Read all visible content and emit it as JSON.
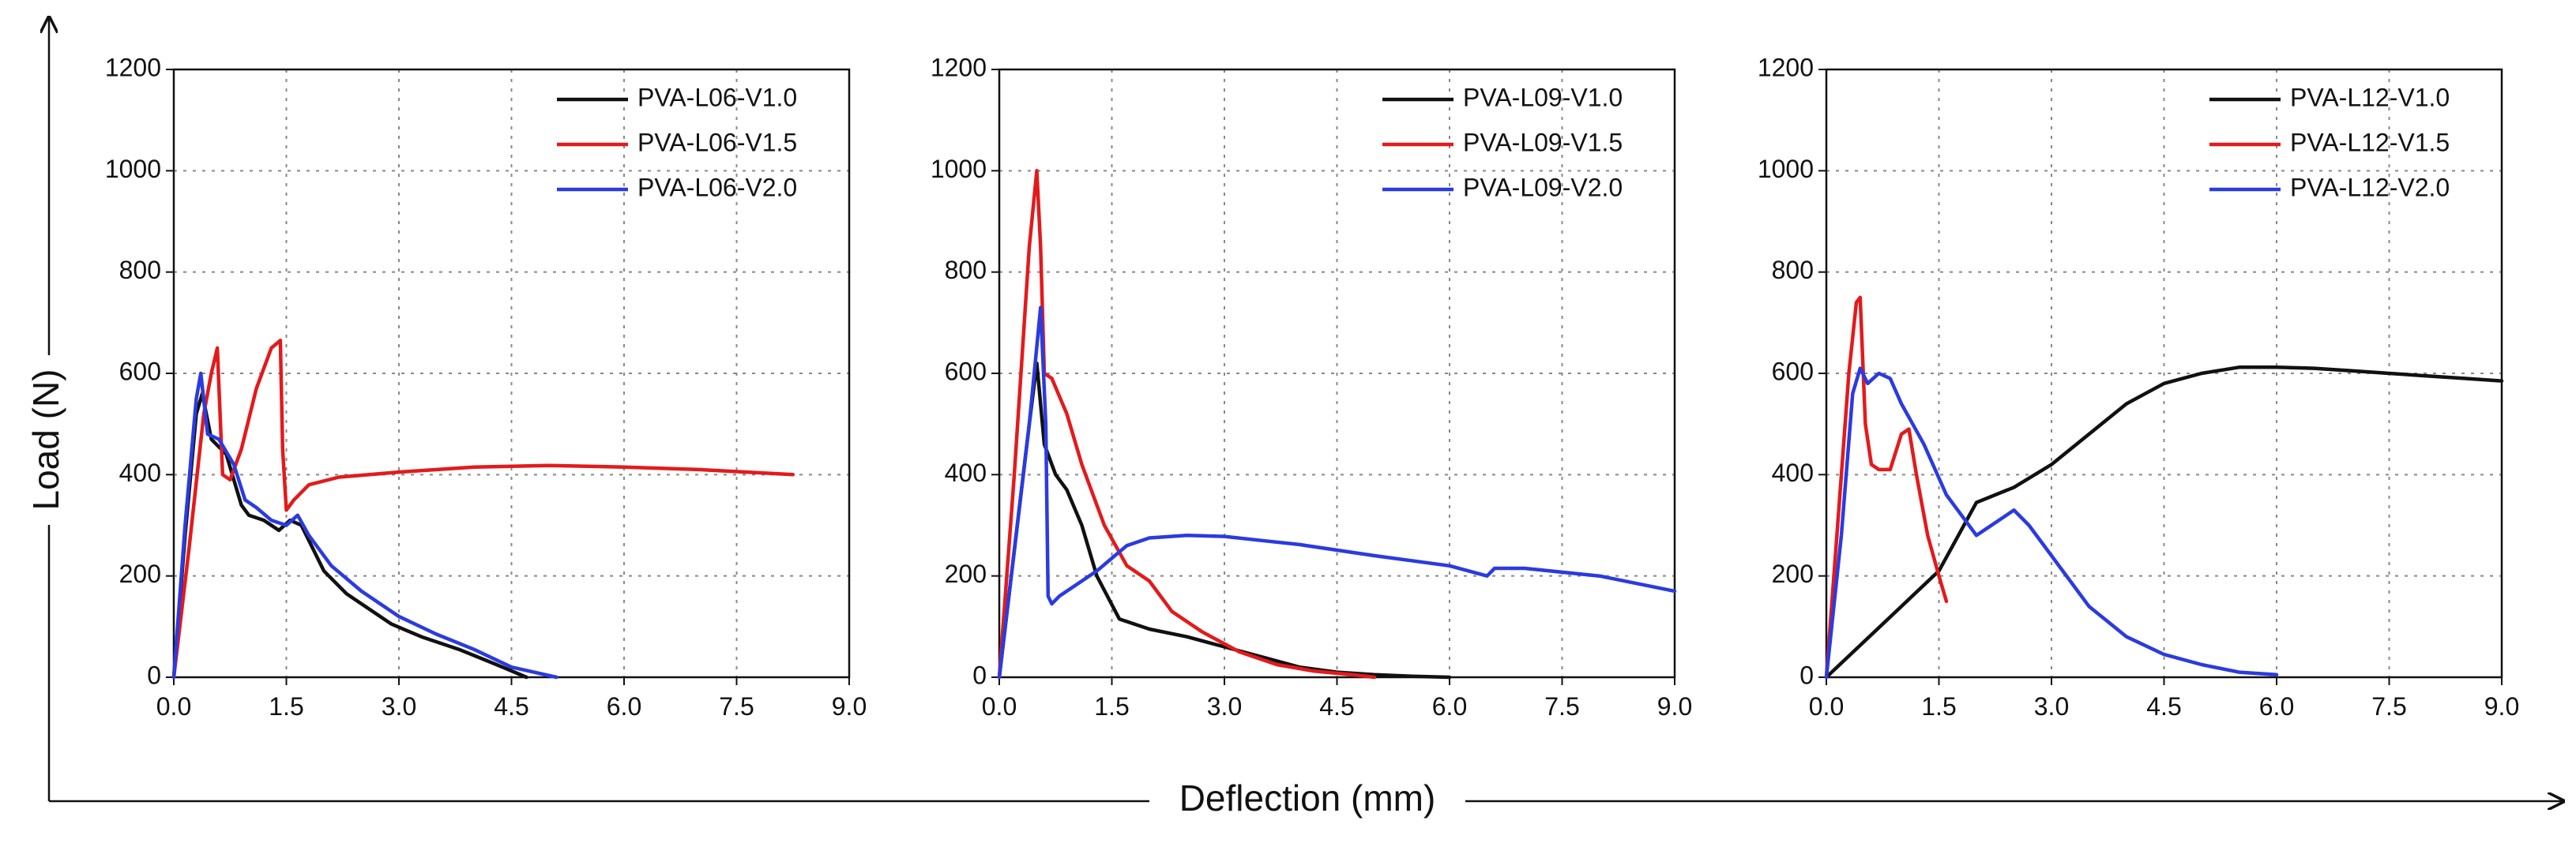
{
  "x_axis_title": "Deflection (mm)",
  "y_axis_title": "Load (N)",
  "colors": {
    "black": "#111111",
    "red": "#e31a1c",
    "blue": "#2b3be0",
    "grid": "#888888"
  },
  "chart_data": [
    {
      "type": "line",
      "xlim": [
        0,
        9
      ],
      "ylim": [
        0,
        1200
      ],
      "x_ticks": [
        "0.0",
        "1.5",
        "3.0",
        "4.5",
        "6.0",
        "7.5",
        "9.0"
      ],
      "y_ticks": [
        "0",
        "200",
        "400",
        "600",
        "800",
        "1000",
        "1200"
      ],
      "grid": true,
      "legend": "top-right",
      "series": [
        {
          "name": "PVA-L06-V1.0",
          "color": "#111111",
          "x": [
            0,
            0.15,
            0.3,
            0.38,
            0.5,
            0.7,
            0.8,
            0.9,
            1.0,
            1.2,
            1.4,
            1.55,
            1.7,
            2.0,
            2.3,
            2.6,
            2.9,
            3.3,
            3.8,
            4.3,
            4.7
          ],
          "y": [
            0,
            280,
            520,
            560,
            470,
            440,
            390,
            340,
            320,
            310,
            290,
            310,
            300,
            210,
            165,
            135,
            105,
            80,
            55,
            25,
            0
          ]
        },
        {
          "name": "PVA-L06-V1.5",
          "color": "#e31a1c",
          "x": [
            0,
            0.2,
            0.4,
            0.5,
            0.58,
            0.65,
            0.75,
            0.9,
            1.1,
            1.3,
            1.42,
            1.45,
            1.5,
            1.6,
            1.8,
            2.2,
            3.0,
            4.0,
            5.0,
            6.0,
            7.0,
            8.25
          ],
          "y": [
            0,
            250,
            520,
            600,
            650,
            400,
            390,
            450,
            570,
            650,
            665,
            450,
            330,
            350,
            380,
            395,
            405,
            415,
            418,
            415,
            410,
            400
          ]
        },
        {
          "name": "PVA-L06-V2.0",
          "color": "#2b3be0",
          "x": [
            0,
            0.15,
            0.3,
            0.36,
            0.45,
            0.6,
            0.8,
            0.95,
            1.1,
            1.3,
            1.5,
            1.65,
            1.8,
            2.1,
            2.5,
            3.0,
            3.5,
            4.0,
            4.5,
            4.8,
            5.1
          ],
          "y": [
            0,
            300,
            550,
            600,
            480,
            470,
            420,
            350,
            335,
            310,
            300,
            320,
            280,
            220,
            170,
            120,
            85,
            55,
            20,
            10,
            0
          ]
        }
      ]
    },
    {
      "type": "line",
      "xlim": [
        0,
        9
      ],
      "ylim": [
        0,
        1200
      ],
      "x_ticks": [
        "0.0",
        "1.5",
        "3.0",
        "4.5",
        "6.0",
        "7.5",
        "9.0"
      ],
      "y_ticks": [
        "0",
        "200",
        "400",
        "600",
        "800",
        "1000",
        "1200"
      ],
      "grid": true,
      "legend": "top-right",
      "series": [
        {
          "name": "PVA-L09-V1.0",
          "color": "#111111",
          "x": [
            0,
            0.2,
            0.4,
            0.5,
            0.6,
            0.75,
            0.9,
            1.1,
            1.3,
            1.6,
            2.0,
            2.5,
            3.0,
            3.5,
            4.0,
            4.5,
            5.0,
            5.5,
            6.0
          ],
          "y": [
            0,
            250,
            500,
            620,
            460,
            400,
            370,
            300,
            200,
            115,
            95,
            80,
            60,
            40,
            20,
            10,
            5,
            2,
            0
          ]
        },
        {
          "name": "PVA-L09-V1.5",
          "color": "#e31a1c",
          "x": [
            0,
            0.2,
            0.4,
            0.5,
            0.55,
            0.6,
            0.7,
            0.9,
            1.1,
            1.4,
            1.7,
            2.0,
            2.3,
            2.7,
            3.2,
            3.7,
            4.2,
            4.7,
            5.0
          ],
          "y": [
            0,
            400,
            850,
            1000,
            850,
            600,
            590,
            520,
            420,
            300,
            220,
            190,
            130,
            90,
            50,
            25,
            12,
            5,
            0
          ]
        },
        {
          "name": "PVA-L09-V2.0",
          "color": "#2b3be0",
          "x": [
            0,
            0.2,
            0.4,
            0.55,
            0.62,
            0.65,
            0.7,
            0.8,
            1.0,
            1.3,
            1.7,
            2.0,
            2.5,
            3.0,
            3.5,
            4.0,
            5.0,
            6.0,
            6.5,
            6.6,
            7.0,
            8.0,
            9.0
          ],
          "y": [
            0,
            250,
            500,
            730,
            500,
            160,
            145,
            160,
            180,
            210,
            260,
            275,
            280,
            278,
            270,
            262,
            240,
            220,
            200,
            215,
            215,
            200,
            170
          ]
        }
      ]
    },
    {
      "type": "line",
      "xlim": [
        0,
        9
      ],
      "ylim": [
        0,
        1200
      ],
      "x_ticks": [
        "0.0",
        "1.5",
        "3.0",
        "4.5",
        "6.0",
        "7.5",
        "9.0"
      ],
      "y_ticks": [
        "0",
        "200",
        "400",
        "600",
        "800",
        "1000",
        "1200"
      ],
      "grid": true,
      "legend": "top-right",
      "series": [
        {
          "name": "PVA-L12-V1.0",
          "color": "#111111",
          "x": [
            0,
            0.5,
            1.0,
            1.5,
            2.0,
            2.5,
            3.0,
            3.5,
            4.0,
            4.5,
            5.0,
            5.5,
            6.0,
            6.5,
            7.0,
            7.5,
            8.0,
            8.5,
            9.0
          ],
          "y": [
            0,
            70,
            140,
            210,
            345,
            375,
            420,
            480,
            540,
            580,
            600,
            612,
            612,
            610,
            605,
            600,
            595,
            590,
            585
          ]
        },
        {
          "name": "PVA-L12-V1.5",
          "color": "#e31a1c",
          "x": [
            0,
            0.15,
            0.3,
            0.4,
            0.45,
            0.52,
            0.6,
            0.7,
            0.85,
            1.0,
            1.1,
            1.2,
            1.35,
            1.5,
            1.6
          ],
          "y": [
            0,
            300,
            600,
            740,
            750,
            500,
            420,
            410,
            410,
            480,
            490,
            400,
            280,
            200,
            150
          ]
        },
        {
          "name": "PVA-L12-V2.0",
          "color": "#2b3be0",
          "x": [
            0,
            0.2,
            0.35,
            0.45,
            0.55,
            0.7,
            0.85,
            1.0,
            1.3,
            1.6,
            2.0,
            2.2,
            2.5,
            2.7,
            3.0,
            3.5,
            4.0,
            4.5,
            5.0,
            5.5,
            6.0
          ],
          "y": [
            0,
            280,
            560,
            610,
            580,
            600,
            590,
            540,
            460,
            360,
            280,
            300,
            330,
            300,
            240,
            140,
            80,
            45,
            25,
            10,
            5
          ]
        }
      ]
    }
  ]
}
